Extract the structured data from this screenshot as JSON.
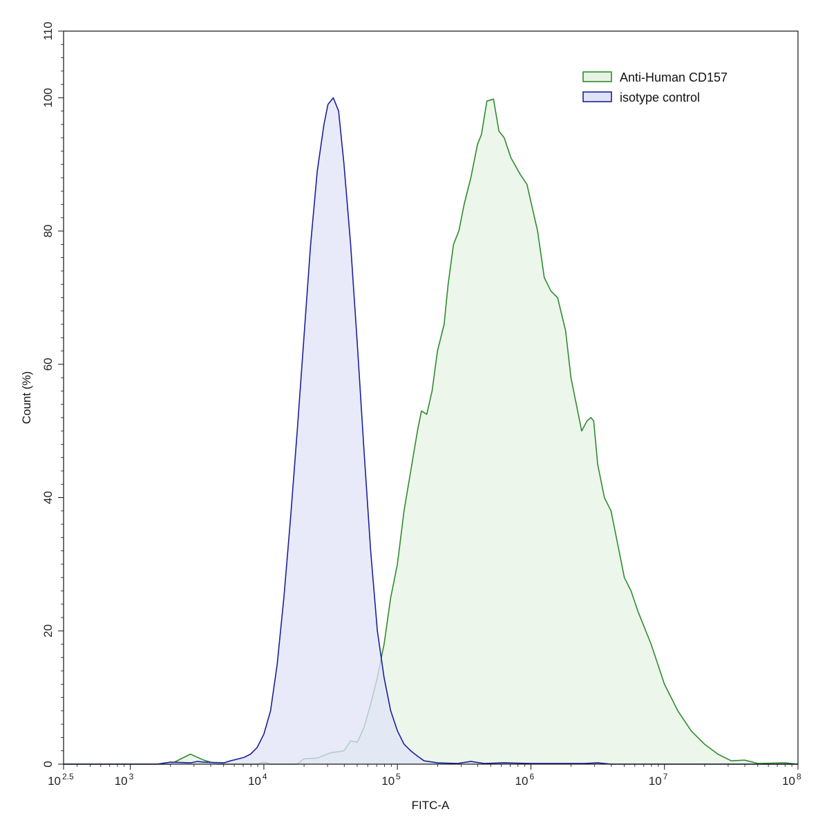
{
  "chart_data": {
    "type": "area",
    "xlabel": "FITC-A",
    "ylabel": "Count  (%)",
    "xscale": "log10",
    "xlim": [
      2.5,
      8
    ],
    "ylim": [
      0,
      110
    ],
    "grid": false,
    "legend_position": "top-right",
    "x_ticks": [
      {
        "base": "10",
        "exp": "2.5",
        "log": 2.5
      },
      {
        "base": "10",
        "exp": "3",
        "log": 3
      },
      {
        "base": "10",
        "exp": "4",
        "log": 4
      },
      {
        "base": "10",
        "exp": "5",
        "log": 5
      },
      {
        "base": "10",
        "exp": "6",
        "log": 6
      },
      {
        "base": "10",
        "exp": "7",
        "log": 7
      },
      {
        "base": "10",
        "exp": "8",
        "log": 8
      }
    ],
    "y_ticks": [
      "0",
      "20",
      "40",
      "60",
      "80",
      "100",
      "110"
    ],
    "series": [
      {
        "name": "Anti-Human CD157",
        "stroke": "#2e8b2e",
        "fill": "#e6f3e3",
        "points": [
          [
            2.5,
            0
          ],
          [
            3.3,
            0
          ],
          [
            3.45,
            1.5
          ],
          [
            3.55,
            0.6
          ],
          [
            3.65,
            0
          ],
          [
            3.95,
            0
          ],
          [
            4.0,
            0.3
          ],
          [
            4.05,
            0
          ],
          [
            4.25,
            0
          ],
          [
            4.3,
            0.8
          ],
          [
            4.4,
            0.9
          ],
          [
            4.5,
            1.7
          ],
          [
            4.6,
            2.0
          ],
          [
            4.65,
            3.5
          ],
          [
            4.7,
            3.3
          ],
          [
            4.75,
            5.5
          ],
          [
            4.8,
            9
          ],
          [
            4.85,
            13
          ],
          [
            4.9,
            18
          ],
          [
            4.95,
            25
          ],
          [
            5.0,
            30
          ],
          [
            5.05,
            38
          ],
          [
            5.1,
            44
          ],
          [
            5.15,
            50
          ],
          [
            5.18,
            53
          ],
          [
            5.22,
            52.5
          ],
          [
            5.26,
            56
          ],
          [
            5.3,
            62
          ],
          [
            5.35,
            66
          ],
          [
            5.38,
            72
          ],
          [
            5.42,
            78
          ],
          [
            5.46,
            80
          ],
          [
            5.5,
            84
          ],
          [
            5.55,
            88
          ],
          [
            5.6,
            93
          ],
          [
            5.63,
            94.5
          ],
          [
            5.67,
            99.5
          ],
          [
            5.72,
            99.8
          ],
          [
            5.76,
            95
          ],
          [
            5.8,
            94
          ],
          [
            5.85,
            91
          ],
          [
            5.92,
            88.5
          ],
          [
            5.97,
            87
          ],
          [
            6.05,
            80
          ],
          [
            6.1,
            73
          ],
          [
            6.15,
            71
          ],
          [
            6.2,
            70
          ],
          [
            6.26,
            65
          ],
          [
            6.3,
            58
          ],
          [
            6.35,
            53
          ],
          [
            6.38,
            50
          ],
          [
            6.42,
            51.5
          ],
          [
            6.45,
            52
          ],
          [
            6.47,
            51.5
          ],
          [
            6.5,
            45
          ],
          [
            6.55,
            40
          ],
          [
            6.6,
            38
          ],
          [
            6.65,
            33
          ],
          [
            6.7,
            28
          ],
          [
            6.75,
            26
          ],
          [
            6.8,
            23
          ],
          [
            6.9,
            18
          ],
          [
            6.95,
            15
          ],
          [
            7.0,
            12
          ],
          [
            7.1,
            8
          ],
          [
            7.2,
            5
          ],
          [
            7.3,
            3
          ],
          [
            7.4,
            1.5
          ],
          [
            7.5,
            0.5
          ],
          [
            7.6,
            0.6
          ],
          [
            7.7,
            0.1
          ],
          [
            7.9,
            0.2
          ],
          [
            8.0,
            0
          ]
        ]
      },
      {
        "name": "isotype control",
        "stroke": "#1a1f99",
        "fill": "#e0e3f8",
        "points": [
          [
            2.5,
            0
          ],
          [
            3.2,
            0
          ],
          [
            3.3,
            0.3
          ],
          [
            3.45,
            0.2
          ],
          [
            3.5,
            0.4
          ],
          [
            3.55,
            0.3
          ],
          [
            3.7,
            0.2
          ],
          [
            3.75,
            0.5
          ],
          [
            3.85,
            1.0
          ],
          [
            3.9,
            1.5
          ],
          [
            3.95,
            2.5
          ],
          [
            4.0,
            4.5
          ],
          [
            4.05,
            8
          ],
          [
            4.1,
            15
          ],
          [
            4.15,
            25
          ],
          [
            4.2,
            37
          ],
          [
            4.25,
            50
          ],
          [
            4.3,
            64
          ],
          [
            4.35,
            78
          ],
          [
            4.4,
            89
          ],
          [
            4.45,
            96
          ],
          [
            4.48,
            99
          ],
          [
            4.52,
            100
          ],
          [
            4.56,
            98
          ],
          [
            4.6,
            90
          ],
          [
            4.65,
            78
          ],
          [
            4.7,
            63
          ],
          [
            4.75,
            47
          ],
          [
            4.8,
            32
          ],
          [
            4.85,
            20
          ],
          [
            4.9,
            13
          ],
          [
            4.95,
            8
          ],
          [
            5.0,
            5
          ],
          [
            5.05,
            3
          ],
          [
            5.1,
            2.0
          ],
          [
            5.15,
            1.2
          ],
          [
            5.2,
            0.5
          ],
          [
            5.3,
            0.2
          ],
          [
            5.45,
            0.1
          ],
          [
            5.55,
            0.4
          ],
          [
            5.65,
            0.1
          ],
          [
            5.8,
            0.2
          ],
          [
            6.0,
            0.1
          ],
          [
            6.4,
            0.1
          ],
          [
            6.5,
            0.2
          ],
          [
            6.6,
            0
          ],
          [
            8.0,
            0
          ]
        ]
      }
    ]
  }
}
